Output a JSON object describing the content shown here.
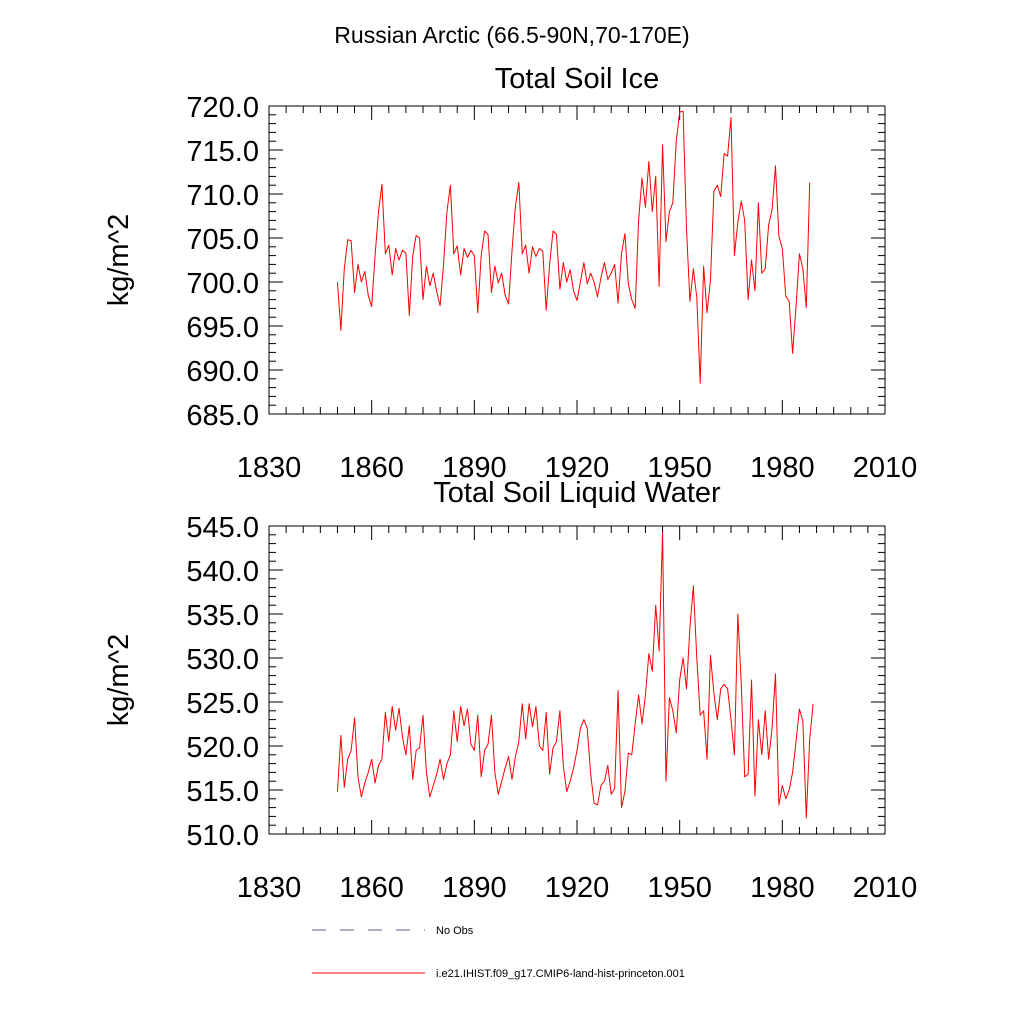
{
  "figure": {
    "suptitle": "Russian Arctic (66.5-90N,70-170E)"
  },
  "chart_data": [
    {
      "type": "line",
      "title": "Total Soil Ice",
      "ylabel": "kg/m^2",
      "xlim": [
        1830,
        2010
      ],
      "ylim": [
        685,
        720
      ],
      "xticks": [
        "1830",
        "1860",
        "1890",
        "1920",
        "1950",
        "1980",
        "2010"
      ],
      "yticks": [
        "685.0",
        "690.0",
        "695.0",
        "700.0",
        "705.0",
        "710.0",
        "715.0",
        "720.0"
      ],
      "x_start": 1850,
      "x_step": 1,
      "series": [
        {
          "name": "i.e21.IHIST.f09_g17.CMIP6-land-hist-princeton.001",
          "color": "#ff0000",
          "values": [
            700.0,
            694.5,
            701.5,
            704.8,
            704.7,
            698.8,
            702.0,
            700.0,
            701.2,
            698.5,
            697.2,
            703.0,
            708.0,
            711.1,
            703.2,
            704.2,
            700.8,
            703.8,
            702.5,
            703.6,
            703.3,
            696.2,
            703.0,
            705.3,
            705.0,
            698.0,
            701.8,
            699.6,
            701.0,
            698.9,
            697.3,
            702.0,
            708.0,
            711.0,
            703.2,
            704.1,
            700.8,
            703.8,
            702.8,
            703.6,
            703.0,
            696.5,
            703.0,
            705.8,
            705.4,
            698.8,
            701.8,
            699.9,
            701.0,
            698.5,
            697.5,
            703.5,
            708.6,
            711.3,
            703.2,
            704.2,
            701.0,
            704.0,
            702.9,
            703.8,
            703.5,
            696.8,
            702.0,
            705.8,
            705.4,
            699.2,
            702.2,
            700.0,
            701.4,
            699.0,
            697.9,
            700.0,
            702.2,
            699.8,
            701.0,
            700.0,
            698.3,
            700.5,
            702.2,
            700.3,
            701.0,
            702.0,
            697.6,
            703.2,
            705.5,
            699.8,
            698.0,
            697.0,
            707.0,
            711.8,
            708.5,
            713.7,
            708.0,
            712.0,
            699.5,
            715.6,
            704.6,
            708.0,
            709.0,
            716.0,
            719.3,
            719.4,
            706.0,
            697.8,
            701.5,
            698.3,
            688.5,
            701.8,
            696.5,
            700.2,
            710.3,
            711.0,
            709.7,
            714.6,
            714.3,
            718.7,
            703.0,
            706.8,
            709.2,
            707.0,
            698.0,
            702.5,
            699.0,
            709.0,
            701.0,
            701.5,
            706.5,
            708.2,
            713.2,
            705.2,
            703.8,
            698.4,
            697.8,
            691.9,
            697.2,
            703.2,
            701.5,
            697.1,
            711.3
          ]
        }
      ]
    },
    {
      "type": "line",
      "title": "Total Soil Liquid Water",
      "ylabel": "kg/m^2",
      "xlim": [
        1830,
        2010
      ],
      "ylim": [
        510,
        545
      ],
      "xticks": [
        "1830",
        "1860",
        "1890",
        "1920",
        "1950",
        "1980",
        "2010"
      ],
      "yticks": [
        "510.0",
        "515.0",
        "520.0",
        "525.0",
        "530.0",
        "535.0",
        "540.0",
        "545.0"
      ],
      "x_start": 1850,
      "x_step": 1,
      "series": [
        {
          "name": "i.e21.IHIST.f09_g17.CMIP6-land-hist-princeton.001",
          "color": "#ff0000",
          "values": [
            514.8,
            521.2,
            515.3,
            518.5,
            519.5,
            523.2,
            516.5,
            514.2,
            515.8,
            517.0,
            518.5,
            515.8,
            517.8,
            518.5,
            523.8,
            520.5,
            524.5,
            521.8,
            524.3,
            521.0,
            519.0,
            522.3,
            516.2,
            519.5,
            519.8,
            523.5,
            517.0,
            514.2,
            515.5,
            516.8,
            518.5,
            516.2,
            518.0,
            519.0,
            524.0,
            520.5,
            524.5,
            522.3,
            524.2,
            520.2,
            519.5,
            523.5,
            516.5,
            519.5,
            520.2,
            523.5,
            517.0,
            514.5,
            516.0,
            517.5,
            518.8,
            516.2,
            518.8,
            520.5,
            524.8,
            520.8,
            524.8,
            522.2,
            524.5,
            520.0,
            519.5,
            523.8,
            516.8,
            519.8,
            520.5,
            524.0,
            517.8,
            514.8,
            516.0,
            517.5,
            519.5,
            522.0,
            523.0,
            522.0,
            516.8,
            513.5,
            513.3,
            515.5,
            516.0,
            517.8,
            514.5,
            515.2,
            526.3,
            513.0,
            514.8,
            519.2,
            519.0,
            522.5,
            525.8,
            522.5,
            525.8,
            530.5,
            528.5,
            536.0,
            530.8,
            544.3,
            516.0,
            525.5,
            524.0,
            521.5,
            527.5,
            530.0,
            526.5,
            533.5,
            538.2,
            530.0,
            523.5,
            524.0,
            518.5,
            530.3,
            526.0,
            523.0,
            526.5,
            527.0,
            526.5,
            523.0,
            519.0,
            535.0,
            527.0,
            516.5,
            516.8,
            527.5,
            514.3,
            523.0,
            519.0,
            524.0,
            518.5,
            522.0,
            528.2,
            513.3,
            515.5,
            514.0,
            515.0,
            517.0,
            520.5,
            524.2,
            522.8,
            511.8,
            520.8,
            524.8
          ]
        }
      ]
    }
  ],
  "legend": {
    "placement": "bottom-center",
    "items": [
      {
        "label": "No Obs",
        "style": "dashed",
        "color": "#5a5a8c"
      },
      {
        "label": "i.e21.IHIST.f09_g17.CMIP6-land-hist-princeton.001",
        "style": "solid",
        "color": "#ff0000"
      }
    ]
  }
}
